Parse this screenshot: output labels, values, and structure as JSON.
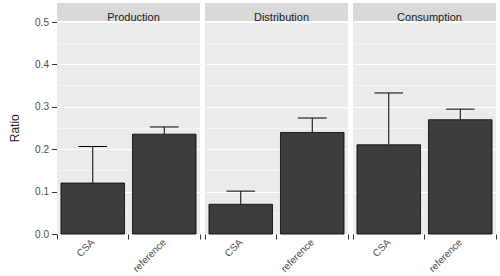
{
  "chart_data": {
    "type": "bar",
    "y_label": "Ratio",
    "categories": [
      "CSA",
      "reference"
    ],
    "color": "#3d3d3d",
    "grid": true,
    "ylim": [
      0,
      0.5
    ],
    "yticks": [
      {
        "value": 0,
        "label": "0.0"
      },
      0.1,
      0.2,
      0.3,
      0.4,
      0.5
    ],
    "panels": [
      {
        "title": "Production",
        "values": [
          0.122,
          0.237
        ],
        "errors": [
          0.085,
          0.016
        ]
      },
      {
        "title": "Distribution",
        "values": [
          0.072,
          0.241
        ],
        "errors": [
          0.03,
          0.033
        ]
      },
      {
        "title": "Consumption",
        "values": [
          0.212,
          0.271
        ],
        "errors": [
          0.121,
          0.024
        ]
      }
    ]
  }
}
